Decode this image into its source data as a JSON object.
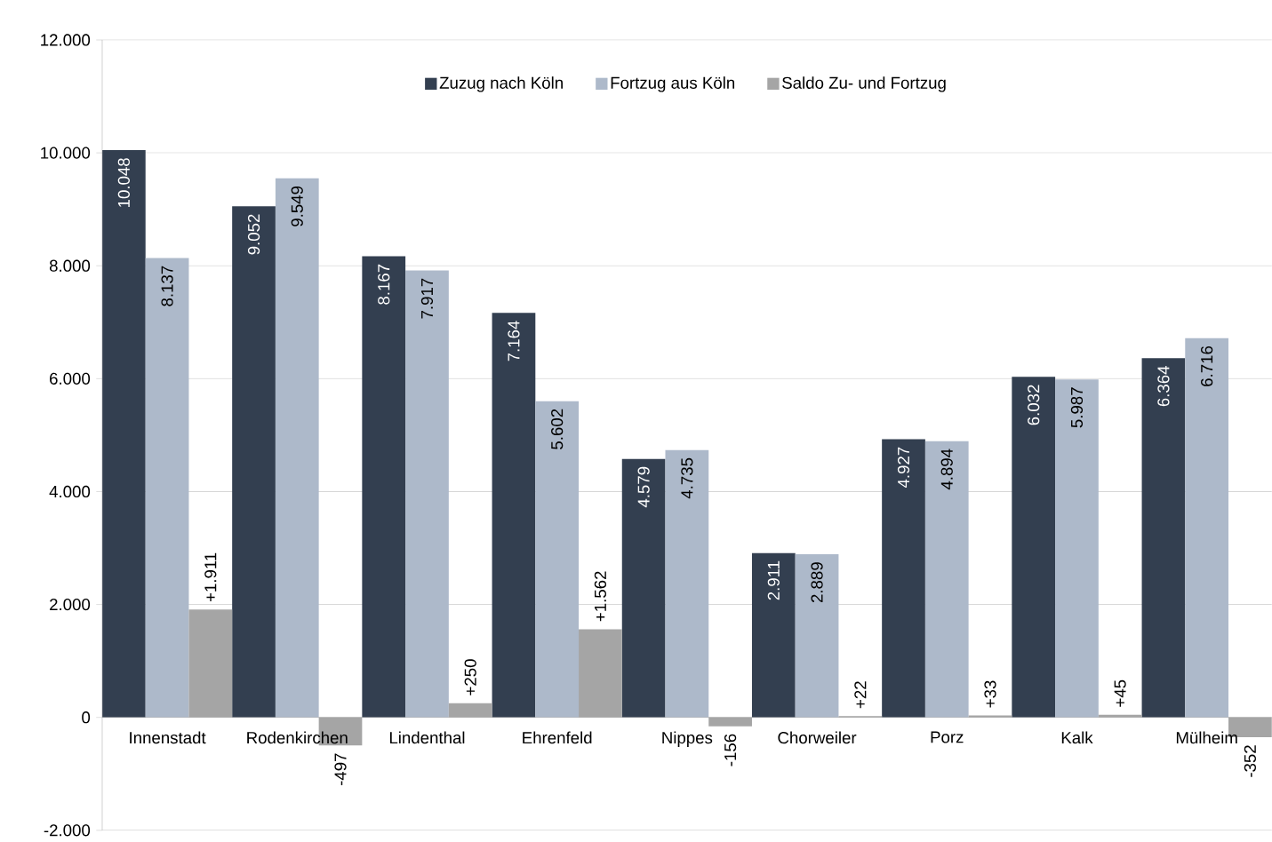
{
  "chart_data": {
    "type": "bar",
    "categories": [
      "Innenstadt",
      "Rodenkirchen",
      "Lindenthal",
      "Ehrenfeld",
      "Nippes",
      "Chorweiler",
      "Porz",
      "Kalk",
      "Mülheim"
    ],
    "series": [
      {
        "name": "Zuzug nach Köln",
        "color": "#333f50",
        "values": [
          10048,
          9052,
          8167,
          7164,
          4579,
          2911,
          4927,
          6032,
          6364
        ],
        "value_labels": [
          "10.048",
          "9.052",
          "8.167",
          "7.164",
          "4.579",
          "2.911",
          "4.927",
          "6.032",
          "6.364"
        ]
      },
      {
        "name": "Fortzug aus Köln",
        "color": "#adb9ca",
        "values": [
          8137,
          9549,
          7917,
          5602,
          4735,
          2889,
          4894,
          5987,
          6716
        ],
        "value_labels": [
          "8.137",
          "9.549",
          "7.917",
          "5.602",
          "4.735",
          "2.889",
          "4.894",
          "5.987",
          "6.716"
        ]
      },
      {
        "name": "Saldo Zu- und Fortzug",
        "color": "#a5a5a5",
        "values": [
          1911,
          -497,
          250,
          1562,
          -156,
          22,
          33,
          45,
          -352
        ],
        "value_labels": [
          "+1.911",
          "-497",
          "+250",
          "+1.562",
          "-156",
          "+22",
          "+33",
          "+45",
          "-352"
        ]
      }
    ],
    "ylim": [
      -2000,
      12000
    ],
    "yticks": [
      {
        "value": -2000,
        "label": "-2.000"
      },
      {
        "value": 0,
        "label": "0"
      },
      {
        "value": 2000,
        "label": "2.000"
      },
      {
        "value": 4000,
        "label": "4.000"
      },
      {
        "value": 6000,
        "label": "6.000"
      },
      {
        "value": 8000,
        "label": "8.000"
      },
      {
        "value": 10000,
        "label": "10.000"
      },
      {
        "value": 12000,
        "label": "12.000"
      }
    ],
    "grid": "y",
    "legend": "top"
  }
}
